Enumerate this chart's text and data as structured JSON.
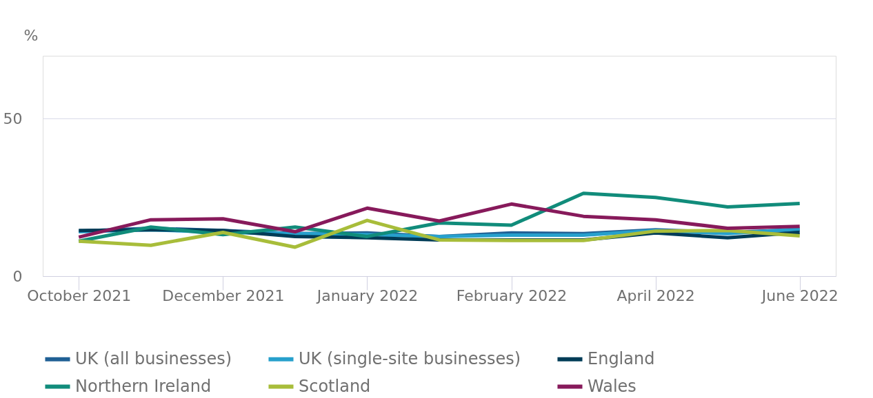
{
  "chart_data": {
    "type": "line",
    "ylabel": "%",
    "categories": [
      "October 2021",
      null,
      "December 2021",
      null,
      "January 2022",
      null,
      "February 2022",
      null,
      "April 2022",
      null,
      "June 2022"
    ],
    "series": [
      {
        "name": "UK (all businesses)",
        "color": "#206095",
        "values": [
          14.3,
          15.2,
          14.5,
          13.5,
          13.7,
          12.6,
          13.7,
          13.5,
          14.7,
          13.9,
          14.7
        ]
      },
      {
        "name": "UK (single-site businesses)",
        "color": "#27a0cc",
        "values": [
          14.1,
          14.7,
          13.9,
          13.5,
          13.2,
          12.6,
          13.0,
          13.0,
          14.5,
          13.5,
          15.0
        ]
      },
      {
        "name": "England",
        "color": "#003c57",
        "values": [
          14.5,
          14.7,
          14.5,
          12.6,
          12.2,
          11.5,
          11.5,
          11.5,
          13.7,
          12.2,
          13.9
        ]
      },
      {
        "name": "Northern Ireland",
        "color": "#118c7b",
        "values": [
          11.1,
          15.6,
          13.2,
          15.6,
          12.6,
          16.9,
          16.2,
          26.3,
          25.0,
          22.0,
          23.1
        ]
      },
      {
        "name": "Scotland",
        "color": "#a8bd3a",
        "values": [
          11.1,
          9.8,
          13.9,
          9.2,
          17.7,
          11.5,
          11.3,
          11.3,
          14.3,
          14.5,
          12.8
        ]
      },
      {
        "name": "Wales",
        "color": "#871a5b",
        "values": [
          12.4,
          17.9,
          18.2,
          14.1,
          21.6,
          17.5,
          22.9,
          19.0,
          17.9,
          15.2,
          15.8
        ]
      }
    ],
    "ylim": [
      0,
      70
    ],
    "yticks": [
      0,
      50
    ],
    "grid": "y",
    "legend": "bottom",
    "line_style": "solid",
    "marker": "none"
  }
}
